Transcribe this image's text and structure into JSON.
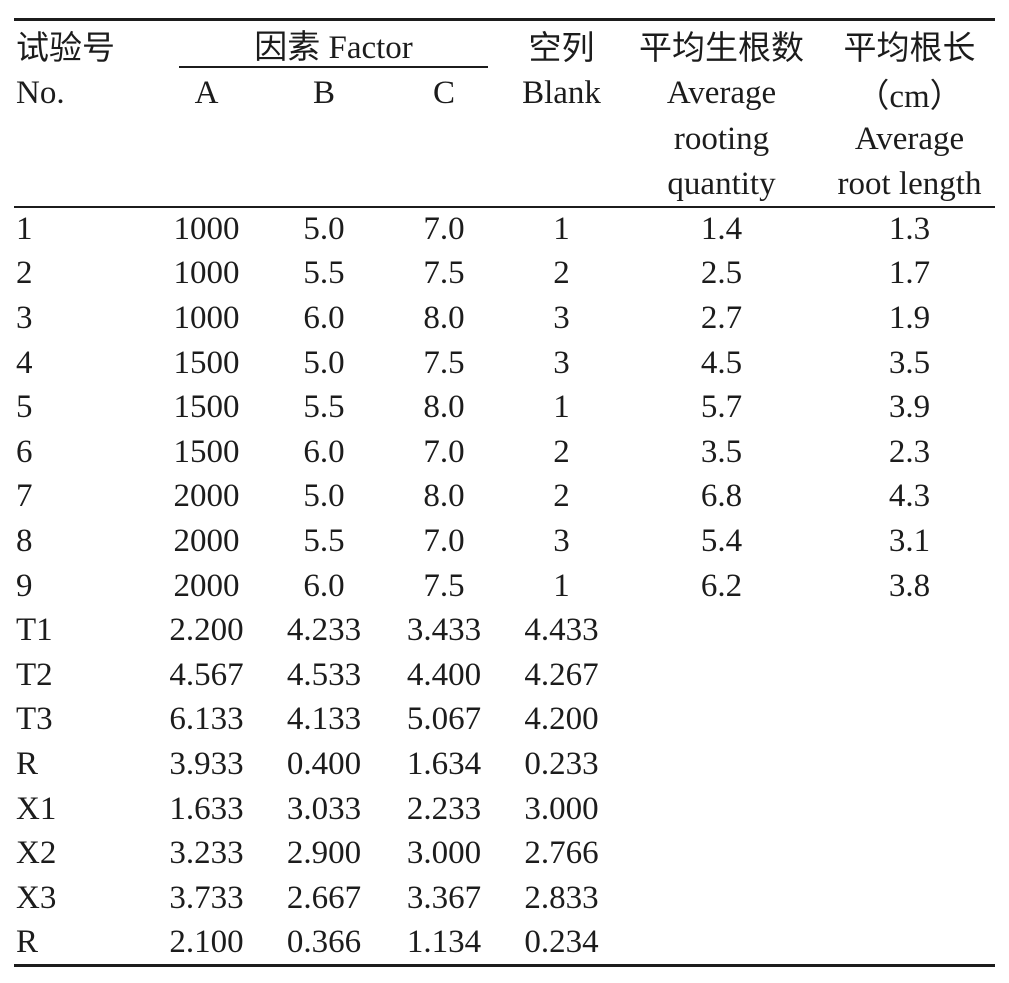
{
  "page": {
    "background": "#ffffff",
    "text_color": "#1c1c1c",
    "rule_color": "#1c1c1c"
  },
  "table": {
    "header": {
      "trial_no_zh": "试验号",
      "trial_no_en": "No.",
      "factor_group": "因素 Factor",
      "factor_a": "A",
      "factor_b": "B",
      "factor_c": "C",
      "blank_zh": "空列",
      "blank_en": "Blank",
      "rooting_zh": "平均生根数",
      "rooting_en_line1": "Average",
      "rooting_en_line2": "rooting",
      "rooting_en_line3": "quantity",
      "length_zh": "平均根长",
      "length_unit": "（cm）",
      "length_en_line1": "Average",
      "length_en_line2": "root length"
    },
    "rows": [
      [
        "1",
        "1000",
        "5.0",
        "7.0",
        "1",
        "1.4",
        "1.3"
      ],
      [
        "2",
        "1000",
        "5.5",
        "7.5",
        "2",
        "2.5",
        "1.7"
      ],
      [
        "3",
        "1000",
        "6.0",
        "8.0",
        "3",
        "2.7",
        "1.9"
      ],
      [
        "4",
        "1500",
        "5.0",
        "7.5",
        "3",
        "4.5",
        "3.5"
      ],
      [
        "5",
        "1500",
        "5.5",
        "8.0",
        "1",
        "5.7",
        "3.9"
      ],
      [
        "6",
        "1500",
        "6.0",
        "7.0",
        "2",
        "3.5",
        "2.3"
      ],
      [
        "7",
        "2000",
        "5.0",
        "8.0",
        "2",
        "6.8",
        "4.3"
      ],
      [
        "8",
        "2000",
        "5.5",
        "7.0",
        "3",
        "5.4",
        "3.1"
      ],
      [
        "9",
        "2000",
        "6.0",
        "7.5",
        "1",
        "6.2",
        "3.8"
      ],
      [
        "T1",
        "2.200",
        "4.233",
        "3.433",
        "4.433",
        "",
        ""
      ],
      [
        "T2",
        "4.567",
        "4.533",
        "4.400",
        "4.267",
        "",
        ""
      ],
      [
        "T3",
        "6.133",
        "4.133",
        "5.067",
        "4.200",
        "",
        ""
      ],
      [
        "R",
        "3.933",
        "0.400",
        "1.634",
        "0.233",
        "",
        ""
      ],
      [
        "X1",
        "1.633",
        "3.033",
        "2.233",
        "3.000",
        "",
        ""
      ],
      [
        "X2",
        "3.233",
        "2.900",
        "3.000",
        "2.766",
        "",
        ""
      ],
      [
        "X3",
        "3.733",
        "2.667",
        "3.367",
        "2.833",
        "",
        ""
      ],
      [
        "R",
        "2.100",
        "0.366",
        "1.134",
        "0.234",
        "",
        ""
      ]
    ]
  }
}
